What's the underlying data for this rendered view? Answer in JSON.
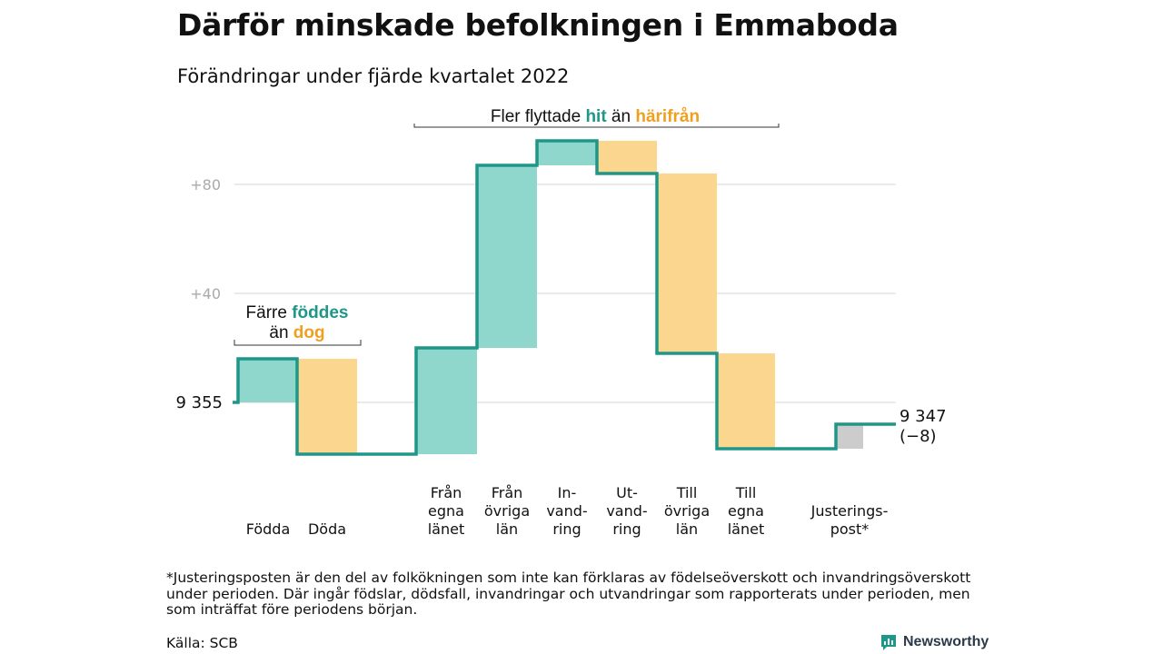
{
  "title": "Därför minskade befolkningen i Emmaboda",
  "subtitle": "Förändringar under fjärde kvartalet 2022",
  "chart_data": {
    "type": "waterfall",
    "start": {
      "label": "9 355",
      "value": 9355
    },
    "end": {
      "label_lines": [
        "9 347",
        "(−8)"
      ],
      "value": 9347,
      "change": -8
    },
    "y_ticks": [
      {
        "label": "+40",
        "value": 40
      },
      {
        "label": "+80",
        "value": 80
      }
    ],
    "grid": true,
    "steps": [
      {
        "label_lines": [
          "Födda"
        ],
        "value": 16,
        "kind": "in"
      },
      {
        "label_lines": [
          "Döda"
        ],
        "value": -35,
        "kind": "out"
      },
      {
        "label_lines": [
          "Från",
          "egna",
          "länet"
        ],
        "value": 39,
        "kind": "in"
      },
      {
        "label_lines": [
          "Från",
          "övriga",
          "län"
        ],
        "value": 67,
        "kind": "in"
      },
      {
        "label_lines": [
          "In-",
          "vand-",
          "ring"
        ],
        "value": 9,
        "kind": "in"
      },
      {
        "label_lines": [
          "Ut-",
          "vand-",
          "ring"
        ],
        "value": -12,
        "kind": "out"
      },
      {
        "label_lines": [
          "Till",
          "övriga",
          "län"
        ],
        "value": -66,
        "kind": "out"
      },
      {
        "label_lines": [
          "Till",
          "egna",
          "länet"
        ],
        "value": -35,
        "kind": "out"
      },
      {
        "label_lines": [
          "Justerings-",
          "post*"
        ],
        "value": 9,
        "kind": "adjust"
      }
    ],
    "annotations": [
      {
        "id": "birth",
        "lines": [
          [
            {
              "text": "Färre ",
              "style": "plain"
            },
            {
              "text": "föddes",
              "style": "teal"
            }
          ],
          [
            {
              "text": "än ",
              "style": "plain"
            },
            {
              "text": "dog",
              "style": "orange"
            }
          ]
        ]
      },
      {
        "id": "move",
        "lines": [
          [
            {
              "text": "Fler flyttade ",
              "style": "plain"
            },
            {
              "text": "hit",
              "style": "teal"
            },
            {
              "text": " än ",
              "style": "plain"
            },
            {
              "text": "härifrån",
              "style": "orange"
            }
          ]
        ]
      }
    ],
    "colors": {
      "line": "#1e9688",
      "in": "#8fd6cc",
      "out": "#fbd68e",
      "adjust": "#cccccc",
      "grid": "#dddddd"
    }
  },
  "footnote": "*Justeringsposten är den del av folkökningen som inte kan förklaras av födelseöverskott och invandringsöverskott under perioden. Där ingår födslar, dödsfall, invandringar och utvandringar som rapporterats under perioden, men som inträffat före periodens början.",
  "source": "Källa: SCB",
  "brand": {
    "name": "Newsworthy",
    "icon": "newsworthy-logo-icon"
  }
}
